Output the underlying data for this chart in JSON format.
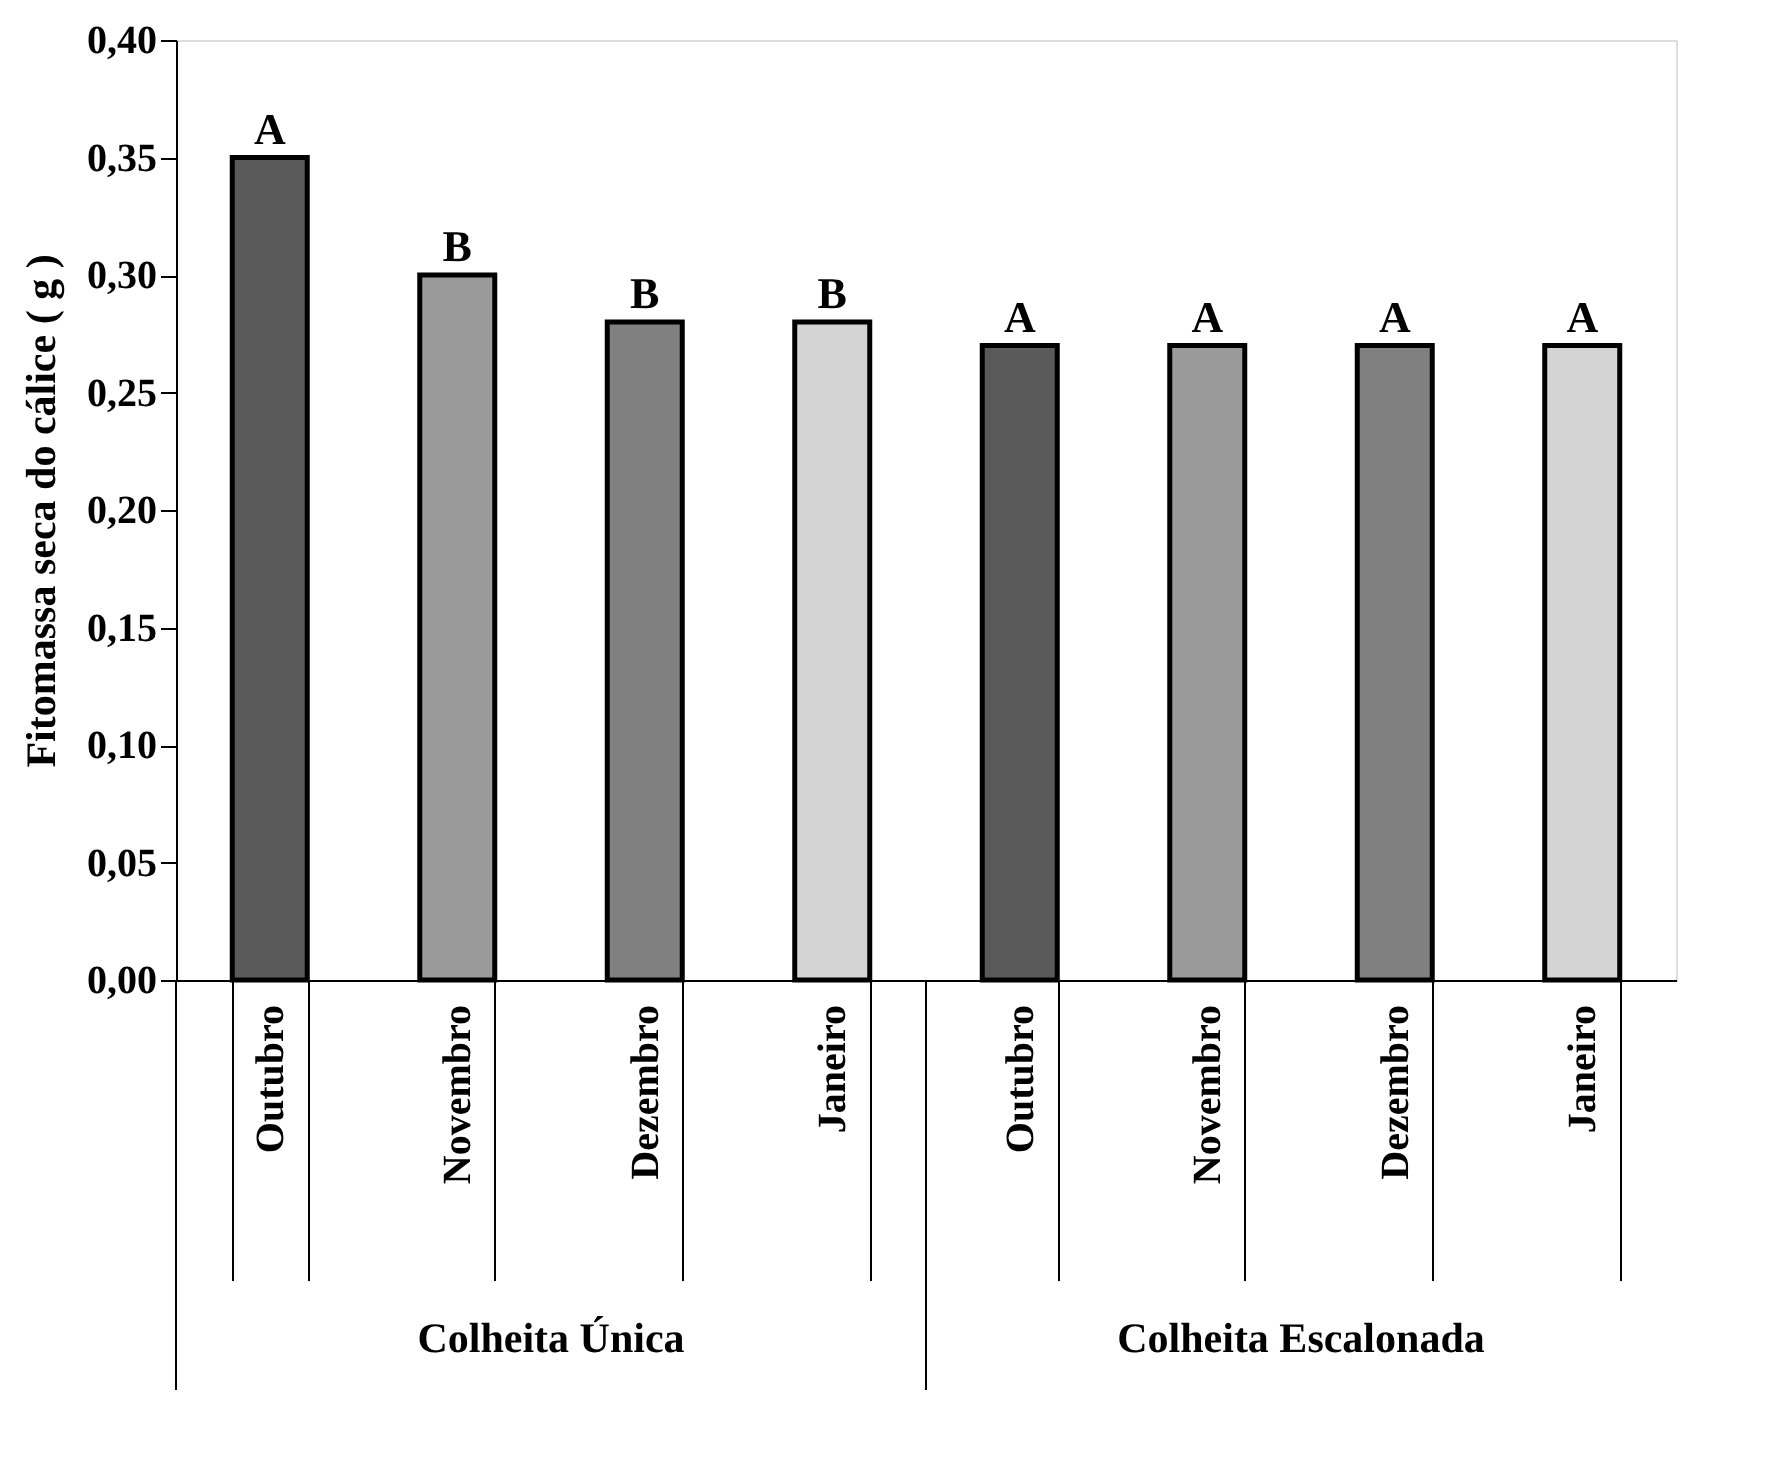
{
  "chart_data": {
    "type": "bar",
    "ylabel": "Fitomassa seca do cálice ( g )",
    "categories": [
      "Outubro",
      "Novembro",
      "Dezembro",
      "Janeiro",
      "Outubro",
      "Novembro",
      "Dezembro",
      "Janeiro"
    ],
    "values": [
      0.35,
      0.3,
      0.28,
      0.28,
      0.27,
      0.27,
      0.27,
      0.27
    ],
    "colors": [
      "#5a5a5a",
      "#9a9a9a",
      "#808080",
      "#d4d4d4",
      "#5a5a5a",
      "#9a9a9a",
      "#808080",
      "#d4d4d4"
    ],
    "value_labels": [
      "A",
      "B",
      "B",
      "B",
      "A",
      "A",
      "A",
      "A"
    ],
    "annotations": [
      "Colheita Única",
      "Colheita Escalonada"
    ],
    "ylim": [
      0,
      0.4
    ],
    "yticks": [
      {
        "value": 0,
        "label": "0,00"
      },
      {
        "value": 0.05,
        "label": "0,05"
      },
      {
        "value": 0.1,
        "label": "0,10"
      },
      {
        "value": 0.15,
        "label": "0,15"
      },
      {
        "value": 0.2,
        "label": "0,20"
      },
      {
        "value": 0.25,
        "label": "0,25"
      },
      {
        "value": 0.3,
        "label": "0,30"
      },
      {
        "value": 0.35,
        "label": "0,35"
      },
      {
        "value": 0.4,
        "label": "0,40"
      }
    ],
    "grid": false
  }
}
